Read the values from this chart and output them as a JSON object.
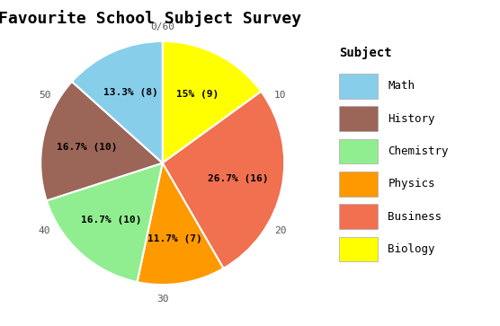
{
  "title": "Favourite School Subject Survey",
  "subjects": [
    "Biology",
    "Business",
    "Physics",
    "Chemistry",
    "History",
    "Math"
  ],
  "values": [
    9,
    16,
    7,
    10,
    10,
    8
  ],
  "percentages": [
    "15% (9)",
    "26.7% (16)",
    "11.7% (7)",
    "16.7% (10)",
    "16.7% (10)",
    "13.3% (8)"
  ],
  "colors": [
    "#FFFF00",
    "#F07050",
    "#FF9900",
    "#90EE90",
    "#9B6558",
    "#87CEEB"
  ],
  "legend_labels": [
    "Math",
    "History",
    "Chemistry",
    "Physics",
    "Business",
    "Biology"
  ],
  "legend_colors": [
    "#87CEEB",
    "#9B6558",
    "#90EE90",
    "#FF9900",
    "#F07050",
    "#FFFF00"
  ],
  "bg_color": "#E8E8E8",
  "grid_color": "#FFFFFF",
  "radial_ticks": [
    "0/60",
    "10",
    "20",
    "30",
    "40",
    "50"
  ],
  "radial_tick_angles_deg": [
    90,
    30,
    -30,
    -90,
    -150,
    150
  ],
  "total": 60,
  "label_r": 38,
  "pie_r": 60,
  "tick_r": 67,
  "title_fontsize": 13,
  "label_fontsize": 8,
  "tick_fontsize": 8
}
